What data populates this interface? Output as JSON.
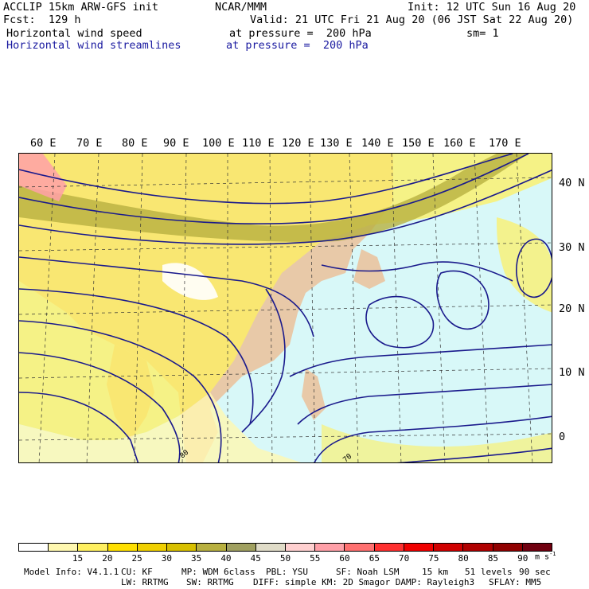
{
  "header": {
    "line1_left": "ACCLIP 15km ARW-GFS init",
    "line1_center": "NCAR/MMM",
    "line1_right": "Init: 12 UTC Sun 16 Aug 20",
    "line2_left": "Fcst:  129 h",
    "line2_right": "Valid: 21 UTC Fri 21 Aug 20 (06 JST Sat 22 Aug 20)",
    "field1_name": "Horizontal wind speed",
    "field1_level": "at pressure =  200 hPa",
    "field1_sm": "sm= 1",
    "field2_name": "Horizontal wind streamlines",
    "field2_level": "at pressure =  200 hPa"
  },
  "map": {
    "lon_labels": [
      "60 E",
      "70 E",
      "80 E",
      "90 E",
      "100 E",
      "110 E",
      "120 E",
      "130 E",
      "140 E",
      "150 E",
      "160 E",
      "170 E"
    ],
    "lat_labels": [
      "40 N",
      "30 N",
      "20 N",
      "10 N",
      "0"
    ],
    "streamline_color": "#1a1a8c",
    "land_color": "#e8c9a8",
    "ocean_color": "#d8f8f8",
    "contour_labels": [
      "80",
      "70"
    ]
  },
  "colorbar": {
    "labels": [
      "15",
      "20",
      "25",
      "30",
      "35",
      "40",
      "45",
      "50",
      "55",
      "60",
      "65",
      "70",
      "75",
      "80",
      "85",
      "90"
    ],
    "unit": "m s",
    "unit_exp": "-1",
    "colors": [
      "#ffffff",
      "#fff8b0",
      "#fff060",
      "#ffe000",
      "#f0d000",
      "#d8c000",
      "#b8b040",
      "#a0a060",
      "#e0dcc8",
      "#ffd0d0",
      "#ffa0a8",
      "#ff7070",
      "#ff3030",
      "#f00000",
      "#d00000",
      "#b00000",
      "#900000",
      "#700010"
    ]
  },
  "footer": {
    "model_info": "Model Info: V4.1.1",
    "cu": "CU: KF",
    "mp": "MP: WDM 6class",
    "pbl": "PBL: YSU",
    "sf": "SF: Noah LSM",
    "res": "15 km",
    "levels": "51 levels",
    "dt": "90 sec",
    "lw": "LW: RRTMG",
    "sw": "SW: RRTMG",
    "diff": "DIFF: simple KM: 2D Smagor DAMP: Rayleigh3",
    "sflay": "SFLAY: MM5"
  }
}
